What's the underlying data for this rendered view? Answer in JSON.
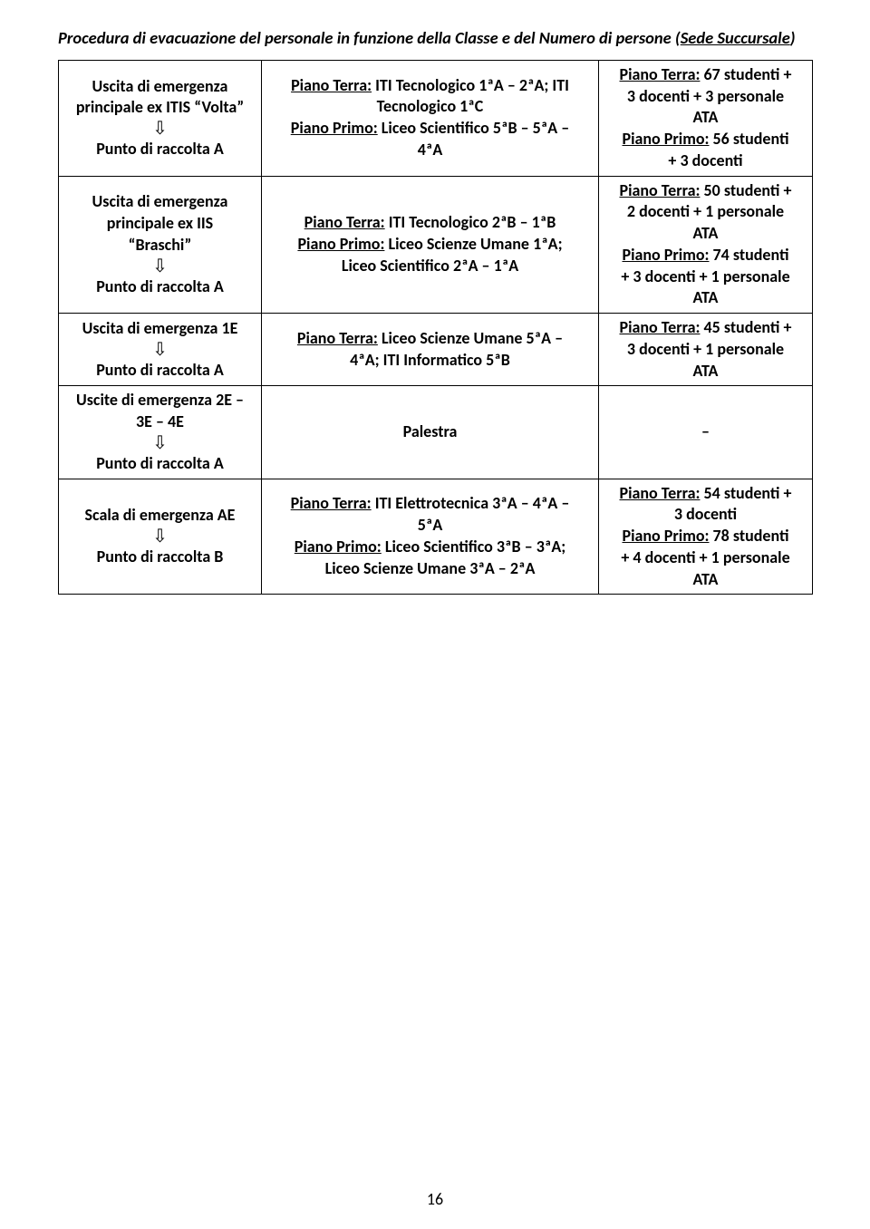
{
  "title_parts": {
    "pre": "Procedura di evacuazione del personale in funzione della Classe e del Numero di persone (",
    "underlined": "Sede Succursale",
    "post": ")"
  },
  "arrow": "⇩",
  "rows": [
    {
      "c1": {
        "l1": "Uscita di emergenza",
        "l2": "principale ex ITIS “Volta”",
        "l4": "Punto di raccolta A"
      },
      "c2": {
        "pt_label": "Piano Terra:",
        "pt_rest": "   ITI Tecnologico  1ªA – 2ªA;   ITI",
        "pt_line2": "Tecnologico  1ªC",
        "pp_label": "Piano Primo:",
        "pp_rest": "   Liceo Scientifico  5ªB – 5ªA –",
        "pp_line2": "4ªA"
      },
      "c3": {
        "pt_label": "Piano Terra:",
        "pt_rest": " 67 studenti +",
        "pt_line2": "3 docenti + 3 personale",
        "pt_line3": "ATA",
        "pp_label": "Piano Primo:",
        "pp_rest": " 56 studenti",
        "pp_line2": "+ 3 docenti"
      }
    },
    {
      "c1": {
        "l1": "Uscita di emergenza",
        "l2": "principale ex IIS",
        "l3": "“Braschi”",
        "l5": "Punto di raccolta A"
      },
      "c2": {
        "pt_label": "Piano Terra:",
        "pt_rest": "   ITI Tecnologico  2ªB – 1ªB",
        "pp_label": "Piano Primo:",
        "pp_rest": "   Liceo Scienze Umane 1ªA;",
        "pp_line2": "Liceo Scientifico  2ªA – 1ªA"
      },
      "c3": {
        "pt_label": "Piano Terra:",
        "pt_rest": " 50 studenti +",
        "pt_line2": "2 docenti + 1 personale",
        "pt_line3": "ATA",
        "pp_label": "Piano Primo:",
        "pp_rest": " 74 studenti",
        "pp_line2": "+ 3 docenti + 1 personale",
        "pp_line3": "ATA"
      }
    },
    {
      "c1": {
        "l1": "Uscita di emergenza 1E",
        "l3": "Punto di raccolta A"
      },
      "c2": {
        "pt_label": "Piano Terra:",
        "pt_rest": "   Liceo Scienze Umane 5ªA –",
        "pt_line2": "4ªA;   ITI Informatico  5ªB"
      },
      "c3": {
        "pt_label": "Piano Terra:",
        "pt_rest": " 45 studenti +",
        "pt_line2": "3 docenti + 1 personale",
        "pt_line3": "ATA"
      }
    },
    {
      "c1": {
        "l1": "Uscite di emergenza 2E –",
        "l2": "3E – 4E",
        "l4": "Punto di raccolta A"
      },
      "c2": {
        "single": "Palestra"
      },
      "c3": {
        "single": "–"
      }
    },
    {
      "c1": {
        "l1": "Scala di emergenza AE",
        "l3": "Punto di raccolta B"
      },
      "c2": {
        "pt_label": "Piano Terra:",
        "pt_rest": "   ITI Elettrotecnica  3ªA – 4ªA –",
        "pt_line2": "5ªA",
        "pp_label": "Piano Primo:",
        "pp_rest": "   Liceo Scientifico  3ªB – 3ªA;",
        "pp_line2": "Liceo Scienze Umane  3ªA – 2ªA"
      },
      "c3": {
        "pt_label": "Piano Terra:",
        "pt_rest": " 54 studenti +",
        "pt_line2": "3 docenti",
        "pp_label": "Piano Primo:",
        "pp_rest": " 78 studenti",
        "pp_line2": "+ 4 docenti + 1 personale",
        "pp_line3": "ATA"
      }
    }
  ],
  "page_number": "16"
}
